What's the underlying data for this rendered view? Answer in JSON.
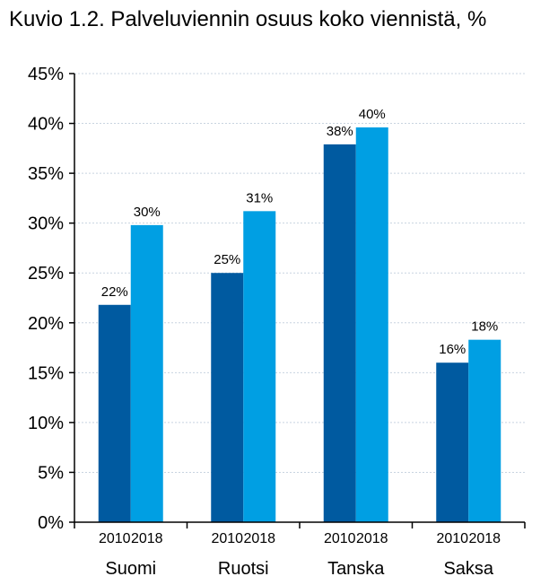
{
  "chart_data": {
    "type": "bar",
    "title": "Kuvio 1.2. Palveluviennin osuus koko viennistä, %",
    "categories": [
      "Suomi",
      "Ruotsi",
      "Tanska",
      "Saksa"
    ],
    "series": [
      {
        "name": "2010",
        "values": [
          21.8,
          25.0,
          37.9,
          16.0
        ],
        "labels": [
          "22%",
          "25%",
          "38%",
          "16%"
        ],
        "color": "#005aa0"
      },
      {
        "name": "2018",
        "values": [
          29.8,
          31.2,
          39.6,
          18.3
        ],
        "labels": [
          "30%",
          "31%",
          "40%",
          "18%"
        ],
        "color": "#009fe3"
      }
    ],
    "ylim": [
      0,
      45
    ],
    "yticks": [
      "0%",
      "5%",
      "10%",
      "15%",
      "20%",
      "25%",
      "30%",
      "35%",
      "40%",
      "45%"
    ],
    "grid": true,
    "xlabel": "",
    "ylabel": ""
  }
}
